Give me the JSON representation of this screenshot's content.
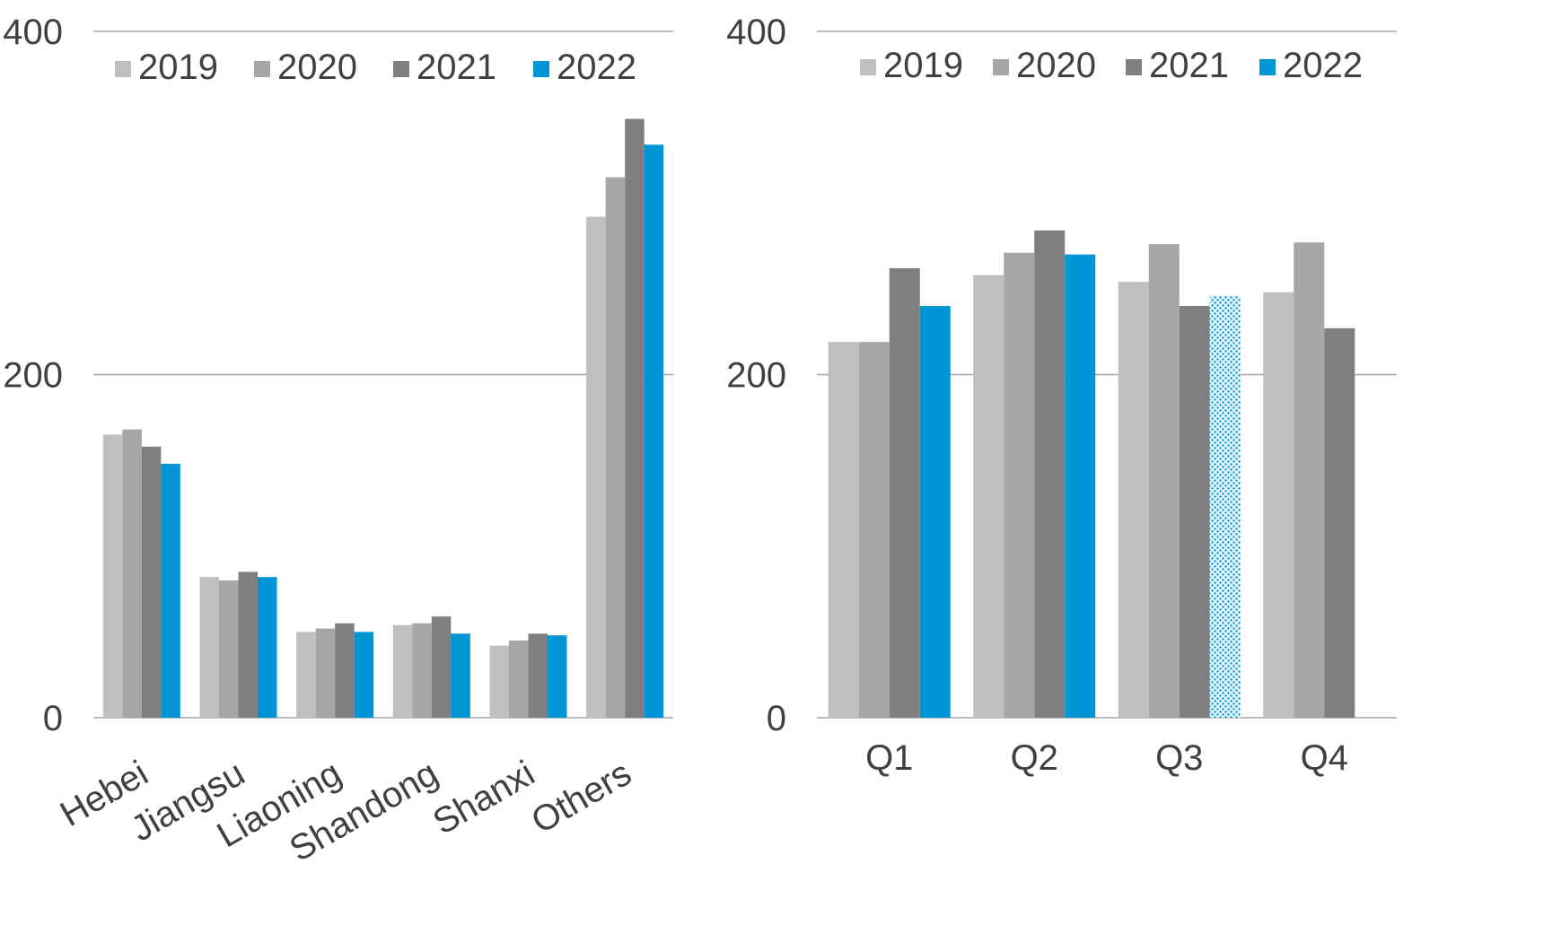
{
  "colors": {
    "2019": "#bfbfbf",
    "2020": "#a6a6a6",
    "2021": "#7f7f7f",
    "2022": "#0096d6",
    "grid": "#a6a6a6",
    "text": "#404040"
  },
  "chart_data": [
    {
      "type": "bar",
      "categories": [
        "Hebei",
        "Jiangsu",
        "Liaoning",
        "Shandong",
        "Shanxi",
        "Others"
      ],
      "series": [
        {
          "name": "2019",
          "values": [
            165,
            82,
            50,
            54,
            42,
            292
          ]
        },
        {
          "name": "2020",
          "values": [
            168,
            80,
            52,
            55,
            45,
            315
          ]
        },
        {
          "name": "2021",
          "values": [
            158,
            85,
            55,
            59,
            49,
            349
          ]
        },
        {
          "name": "2022",
          "values": [
            148,
            82,
            50,
            49,
            48,
            334
          ]
        }
      ],
      "yticks": [
        "0",
        "200",
        "400"
      ],
      "ylim": [
        0,
        400
      ],
      "grid": true,
      "legend": "top"
    },
    {
      "type": "bar",
      "categories": [
        "Q1",
        "Q2",
        "Q3",
        "Q4"
      ],
      "series": [
        {
          "name": "2019",
          "values": [
            219,
            258,
            254,
            248
          ]
        },
        {
          "name": "2020",
          "values": [
            219,
            271,
            276,
            277
          ]
        },
        {
          "name": "2021",
          "values": [
            262,
            284,
            240,
            227
          ]
        },
        {
          "name": "2022",
          "values": [
            240,
            270,
            246,
            null
          ]
        }
      ],
      "estimated_points": [
        {
          "series": "2022",
          "category": "Q3"
        }
      ],
      "yticks": [
        "0",
        "200",
        "400"
      ],
      "ylim": [
        0,
        400
      ],
      "grid": true,
      "legend": "top"
    }
  ]
}
